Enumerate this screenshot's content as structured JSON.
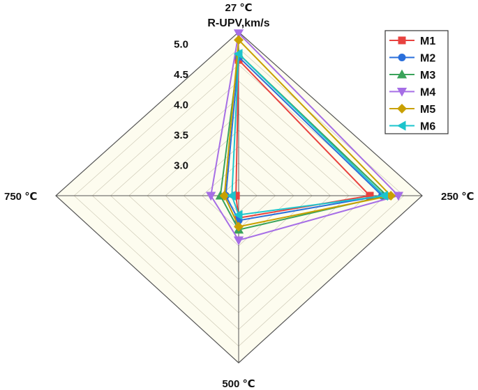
{
  "chart_data": {
    "type": "radar",
    "title": "R-UPV,km/s",
    "axes": [
      "27 ℃",
      "250 ℃",
      "500 ℃",
      "750 ℃"
    ],
    "radial_ticks": [
      "3.0",
      "3.5",
      "4.0",
      "4.5",
      "5.0"
    ],
    "radial_range": [
      2.5,
      5.2
    ],
    "grid": true,
    "legend_position": "top-right",
    "series": [
      {
        "name": "M1",
        "color": "#e8423f",
        "marker": "square",
        "values": [
          4.74,
          4.43,
          2.86,
          2.54
        ]
      },
      {
        "name": "M2",
        "color": "#2a6fdb",
        "marker": "circle",
        "values": [
          4.79,
          4.61,
          2.9,
          2.69
        ]
      },
      {
        "name": "M3",
        "color": "#3aa35a",
        "marker": "triangle-up",
        "values": [
          4.84,
          4.68,
          3.05,
          2.77
        ]
      },
      {
        "name": "M4",
        "color": "#a66ee6",
        "marker": "triangle-down",
        "values": [
          5.18,
          4.85,
          3.22,
          2.91
        ]
      },
      {
        "name": "M5",
        "color": "#c9a000",
        "marker": "diamond",
        "values": [
          5.07,
          4.74,
          3.0,
          2.71
        ]
      },
      {
        "name": "M6",
        "color": "#1cc4cc",
        "marker": "triangle-left",
        "values": [
          4.84,
          4.64,
          2.81,
          2.6
        ]
      }
    ]
  }
}
